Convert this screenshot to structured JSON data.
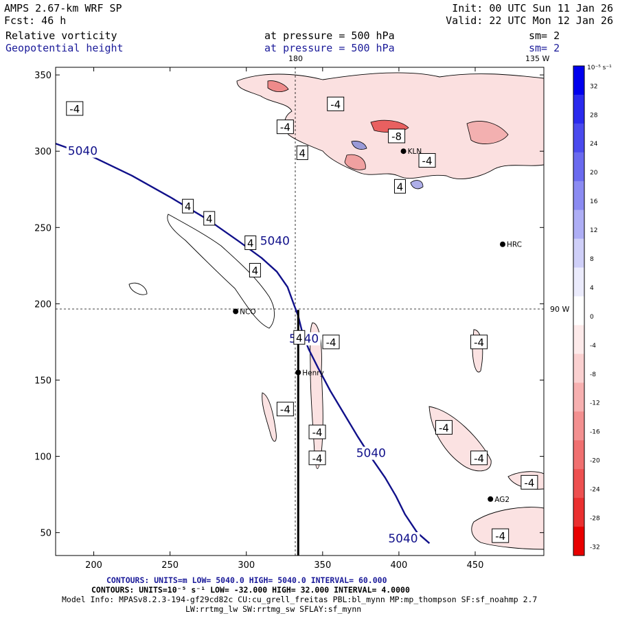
{
  "header": {
    "model": "AMPS 2.67-km WRF SP",
    "forecast": "Fcst:    46 h",
    "init": "Init: 00 UTC Sun 11 Jan 26",
    "valid": "Valid: 22 UTC Mon 12 Jan 26",
    "field1": "Relative vorticity",
    "field1_level": "at pressure =  500 hPa",
    "field1_sm": "sm= 2",
    "field2": "Geopotential height",
    "field2_level": "at pressure =  500 hPa",
    "field2_sm": "sm= 2"
  },
  "map_labels": {
    "lon_180": "180",
    "lon_135w": "135 W",
    "lon_90w": "90 W"
  },
  "stations": [
    {
      "name": "NCO",
      "x": 293,
      "y": 195
    },
    {
      "name": "Henry",
      "x": 334,
      "y": 155
    },
    {
      "name": "KLN",
      "x": 403,
      "y": 300
    },
    {
      "name": "HRC",
      "x": 468,
      "y": 239
    },
    {
      "name": "AG2",
      "x": 460,
      "y": 72
    }
  ],
  "chart_data": {
    "type": "contour",
    "title": "Relative vorticity and Geopotential height at 500 hPa",
    "xlim": [
      175,
      495
    ],
    "ylim": [
      35,
      355
    ],
    "x_ticks": [
      200,
      250,
      300,
      350,
      400,
      450
    ],
    "y_ticks": [
      50,
      100,
      150,
      200,
      250,
      300,
      350
    ],
    "x_tick_labels": [
      "200",
      "250",
      "300",
      "350",
      "400",
      "450"
    ],
    "y_tick_labels": [
      "50",
      "100",
      "150",
      "200",
      "250",
      "300",
      "350"
    ],
    "cross_section": {
      "x": 334,
      "y_from": 35,
      "y_to": 196
    },
    "height_contour": {
      "level": "5040",
      "points": [
        [
          175,
          305
        ],
        [
          200,
          296
        ],
        [
          225,
          284
        ],
        [
          250,
          270
        ],
        [
          275,
          255
        ],
        [
          295,
          241
        ],
        [
          310,
          230
        ],
        [
          320,
          221
        ],
        [
          327,
          211
        ],
        [
          331,
          200
        ],
        [
          334,
          192
        ],
        [
          337,
          180
        ],
        [
          341,
          170
        ],
        [
          347,
          158
        ],
        [
          355,
          143
        ],
        [
          364,
          128
        ],
        [
          373,
          113
        ],
        [
          382,
          99
        ],
        [
          391,
          86
        ],
        [
          398,
          74
        ],
        [
          404,
          62
        ],
        [
          412,
          50
        ],
        [
          420,
          43
        ]
      ],
      "labels": [
        {
          "text": "5040",
          "x": 183,
          "y": 298
        },
        {
          "text": "5040",
          "x": 309,
          "y": 239
        },
        {
          "text": "5040",
          "x": 328,
          "y": 175
        },
        {
          "text": "5040",
          "x": 372,
          "y": 100
        },
        {
          "text": "5040",
          "x": 393,
          "y": 44
        }
      ]
    },
    "vorticity_labels": [
      {
        "text": "-4",
        "x": 183,
        "y": 328
      },
      {
        "text": "-4",
        "x": 354,
        "y": 331
      },
      {
        "text": "-4",
        "x": 321,
        "y": 316
      },
      {
        "text": "4",
        "x": 334,
        "y": 299
      },
      {
        "text": "-8",
        "x": 394,
        "y": 310
      },
      {
        "text": "-4",
        "x": 414,
        "y": 294
      },
      {
        "text": "4",
        "x": 398,
        "y": 277
      },
      {
        "text": "4",
        "x": 259,
        "y": 264
      },
      {
        "text": "4",
        "x": 273,
        "y": 256
      },
      {
        "text": "4",
        "x": 300,
        "y": 240
      },
      {
        "text": "4",
        "x": 303,
        "y": 222
      },
      {
        "text": "4",
        "x": 332,
        "y": 178
      },
      {
        "text": "-4",
        "x": 351,
        "y": 175
      },
      {
        "text": "-4",
        "x": 448,
        "y": 175
      },
      {
        "text": "-4",
        "x": 321,
        "y": 131
      },
      {
        "text": "-4",
        "x": 342,
        "y": 116
      },
      {
        "text": "-4",
        "x": 342,
        "y": 99
      },
      {
        "text": "-4",
        "x": 425,
        "y": 119
      },
      {
        "text": "-4",
        "x": 448,
        "y": 99
      },
      {
        "text": "-4",
        "x": 481,
        "y": 83
      },
      {
        "text": "-4",
        "x": 462,
        "y": 48
      }
    ],
    "colorbar": {
      "units": "10⁻⁵ s⁻¹",
      "ticks": [
        "32",
        "28",
        "24",
        "20",
        "16",
        "12",
        "8",
        "4",
        "0",
        "-4",
        "-8",
        "-12",
        "-16",
        "-20",
        "-24",
        "-28",
        "-32"
      ],
      "colors": [
        "#0000ee",
        "#2a2aee",
        "#4a4aee",
        "#6a6aef",
        "#8b8bf2",
        "#aeaef5",
        "#cfcff8",
        "#ebebfc",
        "#ffffff",
        "#fdeaea",
        "#fad0d0",
        "#f7b0b0",
        "#f39090",
        "#f07070",
        "#ed5050",
        "#ea3030",
        "#e80000"
      ]
    }
  },
  "footer": {
    "line1": "CONTOURS:  UNITS=m  LOW=  5040.0       HIGH=  5040.0       INTERVAL=   60.000",
    "line2": "CONTOURS:  UNITS=10⁻⁵ s⁻¹  LOW= -32.000       HIGH=  32.000       INTERVAL=   4.0000",
    "line3": "Model Info: MPASv8.2.3-194-gf29cd82c CU:cu_grell_freitas PBL:bl_mynn MP:mp_thompson SF:sf_noahmp 2.7",
    "line4": "LW:rrtmg_lw SW:rrtmg_sw SFLAY:sf_mynn"
  }
}
